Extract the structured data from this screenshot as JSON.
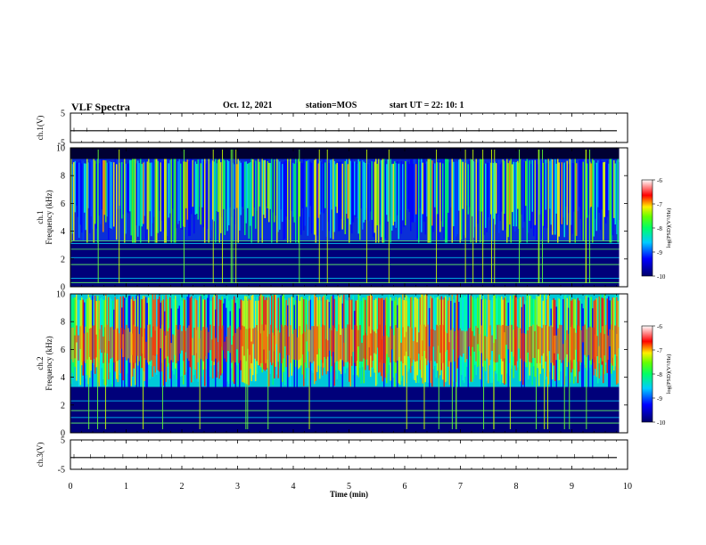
{
  "header": {
    "title": "VLF Spectra",
    "date": "Oct. 12, 2021",
    "station": "station=MOS",
    "start_ut": "start  UT =   22: 10: 1"
  },
  "colors": {
    "spectrogram_scale": [
      "#00008b",
      "#0000ff",
      "#00aaff",
      "#00ffcc",
      "#00ff00",
      "#ccff00",
      "#ffee00",
      "#ff8800",
      "#ff0000",
      "#ffffff"
    ]
  },
  "chart_data": [
    {
      "type": "line",
      "panel": "ch.1 waveform",
      "ylabel": "ch.1(V)",
      "ylim": [
        -5,
        5
      ],
      "yticks": [
        "5",
        "-5"
      ],
      "x": [
        0,
        10
      ],
      "values": [
        -1,
        -1
      ]
    },
    {
      "type": "heatmap",
      "panel": "ch.1 spectrogram",
      "ylabel": "ch.1\nFrequency (kHz)",
      "ylim": [
        0,
        10
      ],
      "yticks": [
        "0",
        "2",
        "4",
        "6",
        "8",
        "10"
      ],
      "xlim": [
        0,
        10
      ],
      "band_kHz": [
        3.3,
        9.2
      ],
      "horizontal_lines_kHz": [
        0.3,
        0.6,
        1.6,
        2.1,
        2.7,
        3.1,
        3.3
      ],
      "colorbar": {
        "label": "log(PSD)(V²/Hz)",
        "ticks": [
          "-6",
          "-7",
          "-8",
          "-9",
          "-10"
        ],
        "range": [
          -10,
          -6
        ]
      }
    },
    {
      "type": "heatmap",
      "panel": "ch.2 spectrogram",
      "ylabel": "ch.2\nFrequency (kHz)",
      "ylim": [
        0,
        10
      ],
      "yticks": [
        "0",
        "2",
        "4",
        "6",
        "8",
        "10"
      ],
      "xlim": [
        0,
        10
      ],
      "band_kHz": [
        3.3,
        10
      ],
      "peak_band_kHz": [
        5.0,
        7.8
      ],
      "horizontal_lines_kHz": [
        0.7,
        1.1,
        1.6,
        2.3
      ],
      "colorbar": {
        "label": "log(PSD)(V²/Hz)",
        "ticks": [
          "-6",
          "-7",
          "-8",
          "-9",
          "-10"
        ],
        "range": [
          -10,
          -6
        ]
      }
    },
    {
      "type": "line",
      "panel": "ch.3 waveform",
      "ylabel": "ch.3(V)",
      "ylim": [
        -5,
        5
      ],
      "yticks": [
        "5",
        "-5"
      ],
      "x": [
        0,
        10
      ],
      "values": [
        -1,
        -1
      ]
    }
  ],
  "xaxis": {
    "label": "Time (min)",
    "ticks": [
      "0",
      "1",
      "2",
      "3",
      "4",
      "5",
      "6",
      "7",
      "8",
      "9",
      "10"
    ],
    "data_end_min": 9.85
  }
}
